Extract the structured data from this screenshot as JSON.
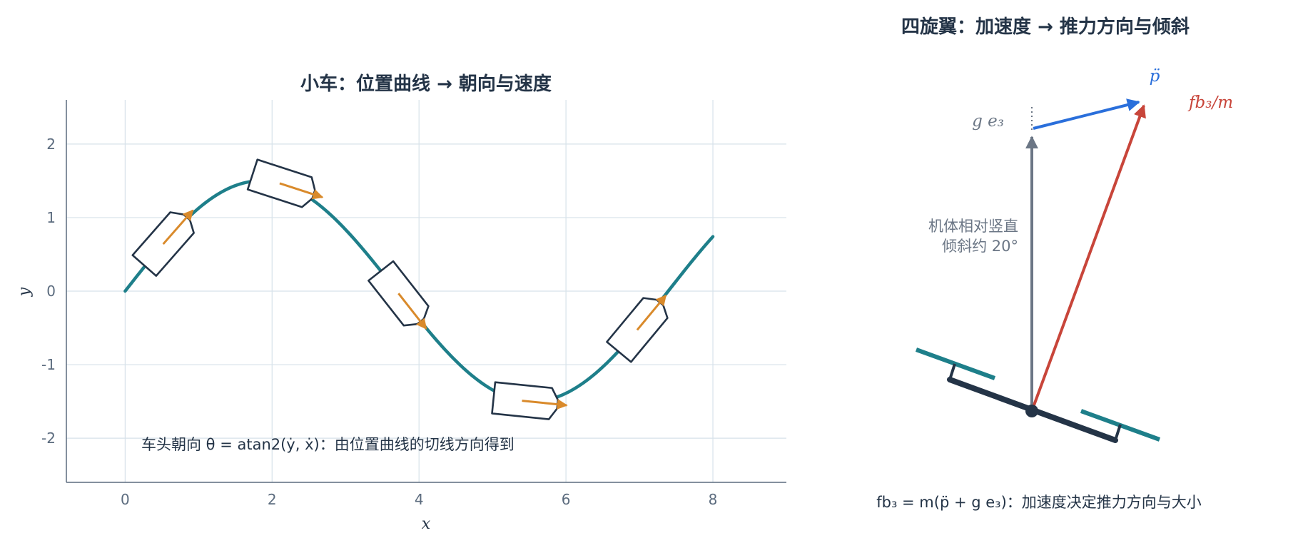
{
  "left_panel": {
    "title": "小车：位置曲线 → 朝向与速度",
    "xlabel": "x",
    "ylabel": "y",
    "x_ticks": [
      "0",
      "2",
      "4",
      "6",
      "8"
    ],
    "y_ticks": [
      "2",
      "1",
      "0",
      "-1",
      "-2"
    ],
    "note": "车头朝向 θ = atan2(ẏ, ẋ)：由位置曲线的切线方向得到"
  },
  "chart_data": {
    "type": "line",
    "title": "小车：位置曲线 → 朝向与速度",
    "xlabel": "x",
    "ylabel": "y",
    "xlim": [
      -0.8,
      9.0
    ],
    "ylim": [
      -2.6,
      2.6
    ],
    "grid": true,
    "curve": "y = 1.5·sin(0.85·x), x from 0 to 8",
    "car_positions_x": [
      0.55,
      2.15,
      3.75,
      5.45,
      7.0
    ],
    "colors": {
      "curve": "#1e7f8a",
      "car": "#243447",
      "velocity": "#d98a2b"
    }
  },
  "right_panel": {
    "title": "四旋翼：加速度 → 推力方向与倾斜",
    "label_pddot": "p̈",
    "label_thrust": "fb₃/m",
    "label_gravity": "g e₃",
    "tilt_note_line1": "机体相对竖直",
    "tilt_note_line2": "倾斜约 20°",
    "tilt_deg": 20,
    "equation": "fb₃ = m(p̈ + g e₃)：加速度决定推力方向与大小",
    "colors": {
      "thrust": "#c8453a",
      "accel": "#2a6fdb",
      "gravity": "#6b7685",
      "body": "#243447",
      "rotor": "#1e7f8a"
    }
  }
}
